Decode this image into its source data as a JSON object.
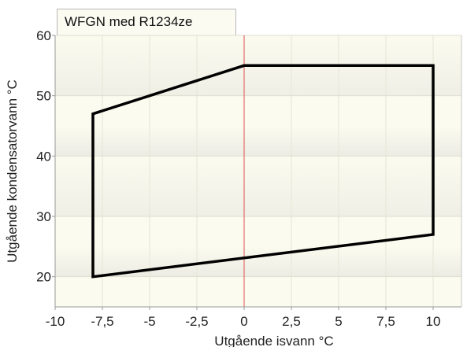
{
  "chart_data": {
    "type": "line",
    "title": "WFGN med R1234ze",
    "xlabel": "Utgående isvann °C",
    "ylabel": "Utgående kondensatorvann °C",
    "xlim": [
      -10,
      11.5
    ],
    "ylim": [
      15,
      60
    ],
    "x_ticks": [
      -10,
      -7.5,
      -5,
      -2.5,
      0,
      2.5,
      5,
      7.5,
      10
    ],
    "x_tick_labels": [
      "-10",
      "-7,5",
      "-5",
      "-2,5",
      "0",
      "2,5",
      "5",
      "7,5",
      "10"
    ],
    "y_ticks": [
      20,
      30,
      40,
      50,
      60
    ],
    "y_tick_labels": [
      "20",
      "30",
      "40",
      "50",
      "60"
    ],
    "grid": true,
    "reference_line": {
      "x": 0,
      "color": "#e05050"
    },
    "series": [
      {
        "closed": true,
        "color": "#000000",
        "points": [
          {
            "x": -8,
            "y": 20
          },
          {
            "x": -8,
            "y": 47
          },
          {
            "x": 0,
            "y": 55
          },
          {
            "x": 10,
            "y": 55
          },
          {
            "x": 10,
            "y": 27
          },
          {
            "x": -8,
            "y": 20
          }
        ]
      }
    ]
  }
}
